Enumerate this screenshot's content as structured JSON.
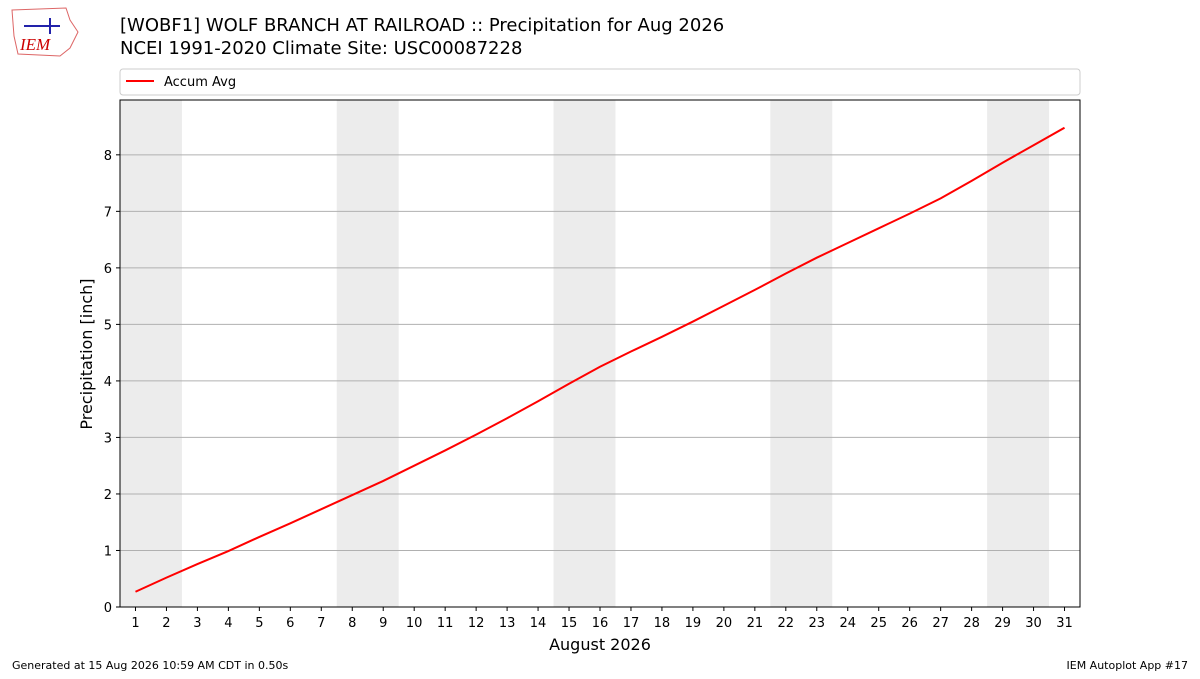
{
  "chart_data": {
    "type": "line",
    "title": "[WOBF1] WOLF BRANCH AT RAILROAD :: Precipitation for Aug 2026",
    "subtitle": "NCEI 1991-2020 Climate Site: USC00087228",
    "x_label": "August 2026",
    "y_label": "Precipitation [inch]",
    "x": [
      1,
      2,
      3,
      4,
      5,
      6,
      7,
      8,
      9,
      10,
      11,
      12,
      13,
      14,
      15,
      16,
      17,
      18,
      19,
      20,
      21,
      22,
      23,
      24,
      25,
      26,
      27,
      28,
      29,
      30,
      31
    ],
    "series": [
      {
        "name": "Accum Avg",
        "color": "#ff0000",
        "values": [
          0.27,
          0.52,
          0.76,
          0.99,
          1.24,
          1.48,
          1.73,
          1.98,
          2.23,
          2.5,
          2.77,
          3.05,
          3.34,
          3.64,
          3.95,
          4.25,
          4.52,
          4.78,
          5.05,
          5.33,
          5.61,
          5.9,
          6.18,
          6.44,
          6.7,
          6.96,
          7.23,
          7.54,
          7.86,
          8.17,
          8.48
        ]
      }
    ],
    "xlim": [
      0.5,
      31.5
    ],
    "xticks": [
      1,
      2,
      3,
      4,
      5,
      6,
      7,
      8,
      9,
      10,
      11,
      12,
      13,
      14,
      15,
      16,
      17,
      18,
      19,
      20,
      21,
      22,
      23,
      24,
      25,
      26,
      27,
      28,
      29,
      30,
      31
    ],
    "ylim": [
      0,
      8.97
    ],
    "yticks": [
      0,
      1,
      2,
      3,
      4,
      5,
      6,
      7,
      8
    ],
    "grid": true,
    "shaded_spans": [
      [
        0.5,
        2.5
      ],
      [
        7.5,
        9.5
      ],
      [
        14.5,
        16.5
      ],
      [
        21.5,
        23.5
      ],
      [
        28.5,
        30.5
      ]
    ],
    "shade_color": "#ececec",
    "legend": "top"
  },
  "logo_text": "IEM",
  "footer_left": "Generated at 15 Aug 2026 10:59 AM CDT in 0.50s",
  "footer_right": "IEM Autoplot App #17"
}
